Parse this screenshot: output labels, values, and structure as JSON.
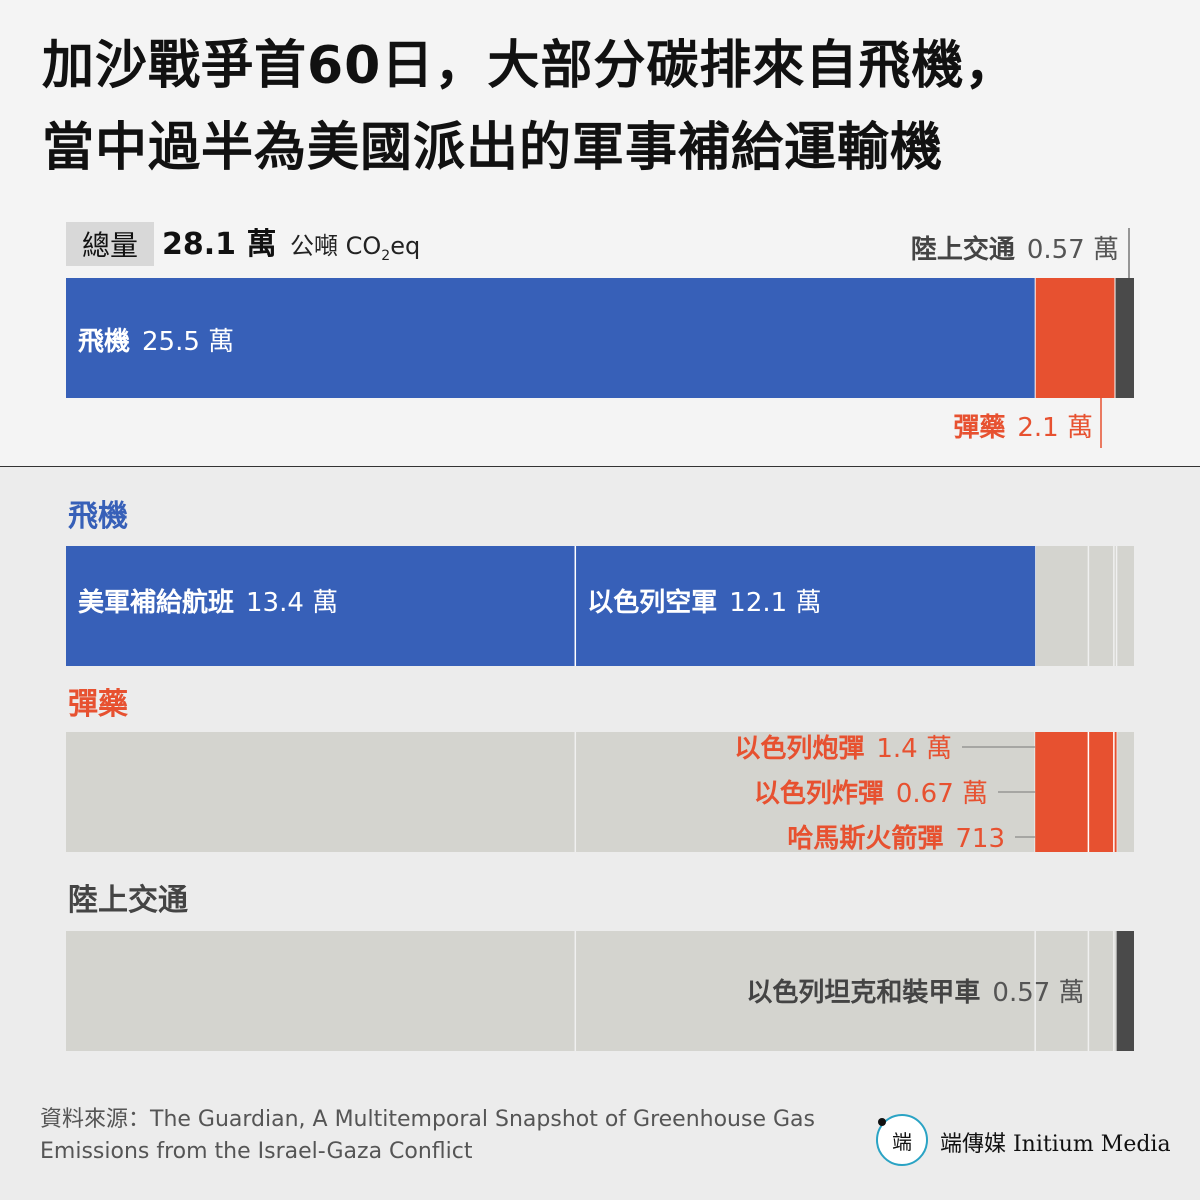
{
  "title": {
    "line1": "加沙戰爭首60日，大部分碳排來自飛機，",
    "line2": "當中過半為美國派出的軍事補給運輸機"
  },
  "total": {
    "tag": "總量",
    "value": "28.1 萬",
    "unit_prefix": "公噸 CO",
    "unit_sub": "2",
    "unit_suffix": "eq"
  },
  "colors": {
    "aircraft": "#3760b8",
    "munitions": "#e75130",
    "ground": "#4a4a4a",
    "empty": "#d4d4cf"
  },
  "chart_data": {
    "type": "bar",
    "unit": "公噸 CO2eq",
    "total": 281000,
    "stacked_total": [
      {
        "name": "飛機",
        "value_label": "25.5 萬",
        "value": 255000
      },
      {
        "name": "彈藥",
        "value_label": "2.1 萬",
        "value": 21000
      },
      {
        "name": "陸上交通",
        "value_label": "0.57 萬",
        "value": 5700
      }
    ],
    "breakdown": [
      {
        "category": "飛機",
        "title": "飛機",
        "items": [
          {
            "name": "美軍補給航班",
            "value_label": "13.4 萬",
            "value": 134000
          },
          {
            "name": "以色列空軍",
            "value_label": "12.1 萬",
            "value": 121000
          }
        ]
      },
      {
        "category": "彈藥",
        "title": "彈藥",
        "items": [
          {
            "name": "以色列炮彈",
            "value_label": "1.4 萬",
            "value": 14000
          },
          {
            "name": "以色列炸彈",
            "value_label": "0.67 萬",
            "value": 6700
          },
          {
            "name": "哈馬斯火箭彈",
            "value_label": "713",
            "value": 713
          }
        ]
      },
      {
        "category": "陸上交通",
        "title": "陸上交通",
        "items": [
          {
            "name": "以色列坦克和裝甲車",
            "value_label": "0.57 萬",
            "value": 5700
          }
        ]
      }
    ]
  },
  "footer": {
    "source": "資料來源：The Guardian, A Multitemporal Snapshot of Greenhouse Gas Emissions from the Israel-Gaza Conflict",
    "logo_glyph": "端",
    "brand": "端傳媒 Initium Media"
  }
}
